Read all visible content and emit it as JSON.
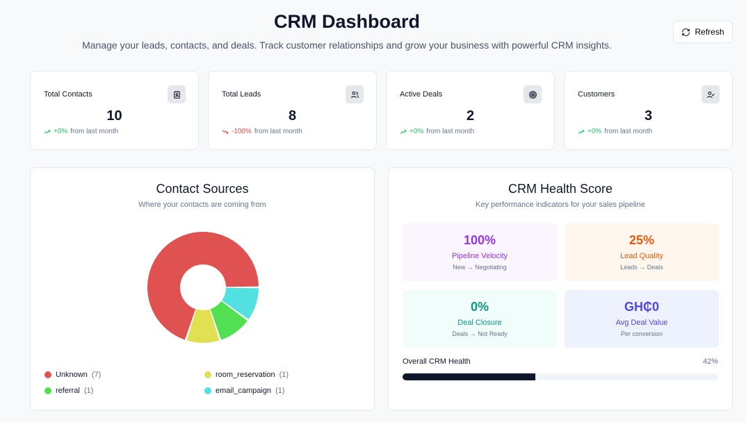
{
  "header": {
    "title": "CRM Dashboard",
    "subtitle": "Manage your leads, contacts, and deals. Track customer relationships and grow your business with powerful CRM insights.",
    "refresh_label": "Refresh"
  },
  "stats": [
    {
      "title": "Total Contacts",
      "value": "10",
      "change": "+0%",
      "trend": "up",
      "suffix": "from last month",
      "icon": "contact-icon"
    },
    {
      "title": "Total Leads",
      "value": "8",
      "change": "-100%",
      "trend": "down",
      "suffix": "from last month",
      "icon": "users-icon"
    },
    {
      "title": "Active Deals",
      "value": "2",
      "change": "+0%",
      "trend": "up",
      "suffix": "from last month",
      "icon": "target-icon"
    },
    {
      "title": "Customers",
      "value": "3",
      "change": "+0%",
      "trend": "up",
      "suffix": "from last month",
      "icon": "user-check-icon"
    }
  ],
  "sources": {
    "title": "Contact Sources",
    "subtitle": "Where your contacts are coming from",
    "items": [
      {
        "label": "Unknown",
        "count": "(7)",
        "value": 7,
        "color": "#e05252"
      },
      {
        "label": "room_reservation",
        "count": "(1)",
        "value": 1,
        "color": "#e0e052"
      },
      {
        "label": "referral",
        "count": "(1)",
        "value": 1,
        "color": "#52e052"
      },
      {
        "label": "email_campaign",
        "count": "(1)",
        "value": 1,
        "color": "#52e0e0"
      }
    ]
  },
  "health": {
    "title": "CRM Health Score",
    "subtitle": "Key performance indicators for your sales pipeline",
    "kpis": [
      {
        "value": "100%",
        "label": "Pipeline Velocity",
        "sub": "New → Negotiating",
        "color": "#9333ea",
        "bg": "#faf5ff"
      },
      {
        "value": "25%",
        "label": "Lead Quality",
        "sub": "Leads → Deals",
        "color": "#ea580c",
        "bg": "#fff7ed"
      },
      {
        "value": "0%",
        "label": "Deal Closure",
        "sub": "Deals → Not Ready",
        "color": "#0d9488",
        "bg": "#f0fdfa"
      },
      {
        "value": "GH₵0",
        "label": "Avg Deal Value",
        "sub": "Per conversion",
        "color": "#4f46e5",
        "bg": "#eef2ff"
      }
    ],
    "overall_label": "Overall CRM Health",
    "overall_value": "42%",
    "overall_percent": 42
  }
}
